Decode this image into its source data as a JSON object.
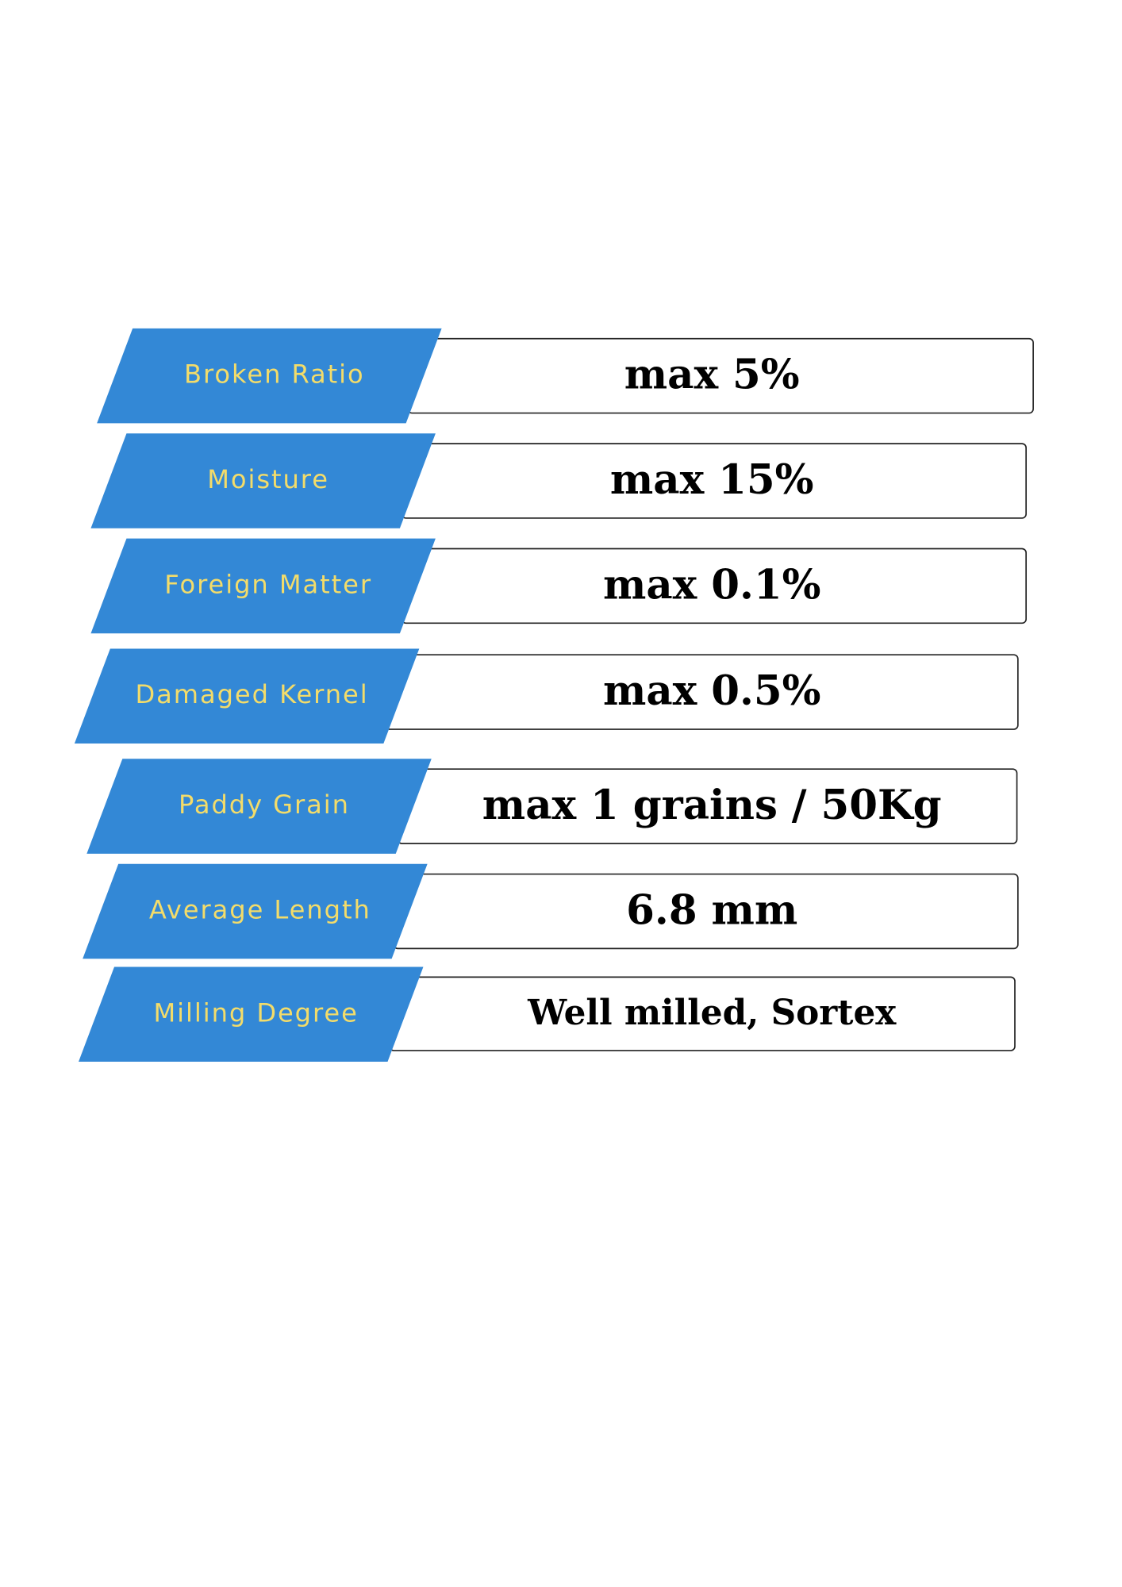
{
  "rows": [
    {
      "label": "Broken Ratio",
      "value": "max 5%"
    },
    {
      "label": "Moisture",
      "value": "max 15%"
    },
    {
      "label": "Foreign Matter",
      "value": "max 0.1%"
    },
    {
      "label": "Damaged Kernel",
      "value": "max 0.5%"
    },
    {
      "label": "Paddy Grain",
      "value": "max 1 grains / 50Kg"
    },
    {
      "label": "Average Length",
      "value": "6.8 mm"
    },
    {
      "label": "Milling Degree",
      "value": "Well milled, Sortex"
    }
  ]
}
